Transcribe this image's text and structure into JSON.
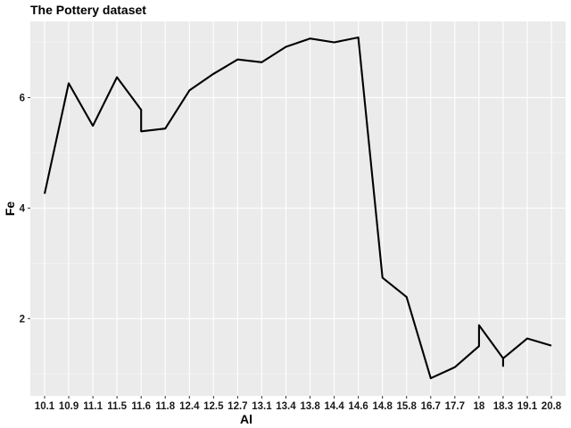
{
  "chart_data": {
    "type": "line",
    "title": "The Pottery dataset",
    "xlabel": "Al",
    "ylabel": "Fe",
    "categories": [
      "10.1",
      "10.9",
      "11.1",
      "11.5",
      "11.6",
      "11.8",
      "12.4",
      "12.5",
      "12.7",
      "13.1",
      "13.4",
      "13.8",
      "14.4",
      "14.6",
      "14.8",
      "15.8",
      "16.7",
      "17.7",
      "18",
      "18.3",
      "19.1",
      "20.8"
    ],
    "series": [
      {
        "points": [
          [
            "10.1",
            4.26
          ],
          [
            "10.9",
            6.26
          ],
          [
            "11.1",
            5.49
          ],
          [
            "11.5",
            6.37
          ],
          [
            "11.6",
            5.78
          ],
          [
            "11.6",
            5.39
          ],
          [
            "11.8",
            5.44
          ],
          [
            "12.4",
            6.13
          ],
          [
            "12.5",
            6.43
          ],
          [
            "12.7",
            6.69
          ],
          [
            "13.1",
            6.64
          ],
          [
            "13.4",
            6.92
          ],
          [
            "13.8",
            7.07
          ],
          [
            "14.4",
            7.0
          ],
          [
            "14.6",
            7.09
          ],
          [
            "14.8",
            2.74
          ],
          [
            "15.8",
            2.39
          ],
          [
            "16.7",
            0.92
          ],
          [
            "17.7",
            1.12
          ],
          [
            "18",
            1.5
          ],
          [
            "18",
            1.88
          ],
          [
            "18.3",
            1.28
          ],
          [
            "18.3",
            1.14
          ],
          [
            "18.3",
            1.28
          ],
          [
            "19.1",
            1.64
          ],
          [
            "20.8",
            1.51
          ]
        ]
      }
    ],
    "yticks": [
      2,
      4,
      6
    ],
    "ylim": [
      0.6,
      7.38
    ],
    "grid": true,
    "background": "#EBEBEB",
    "line_color": "#000000"
  }
}
